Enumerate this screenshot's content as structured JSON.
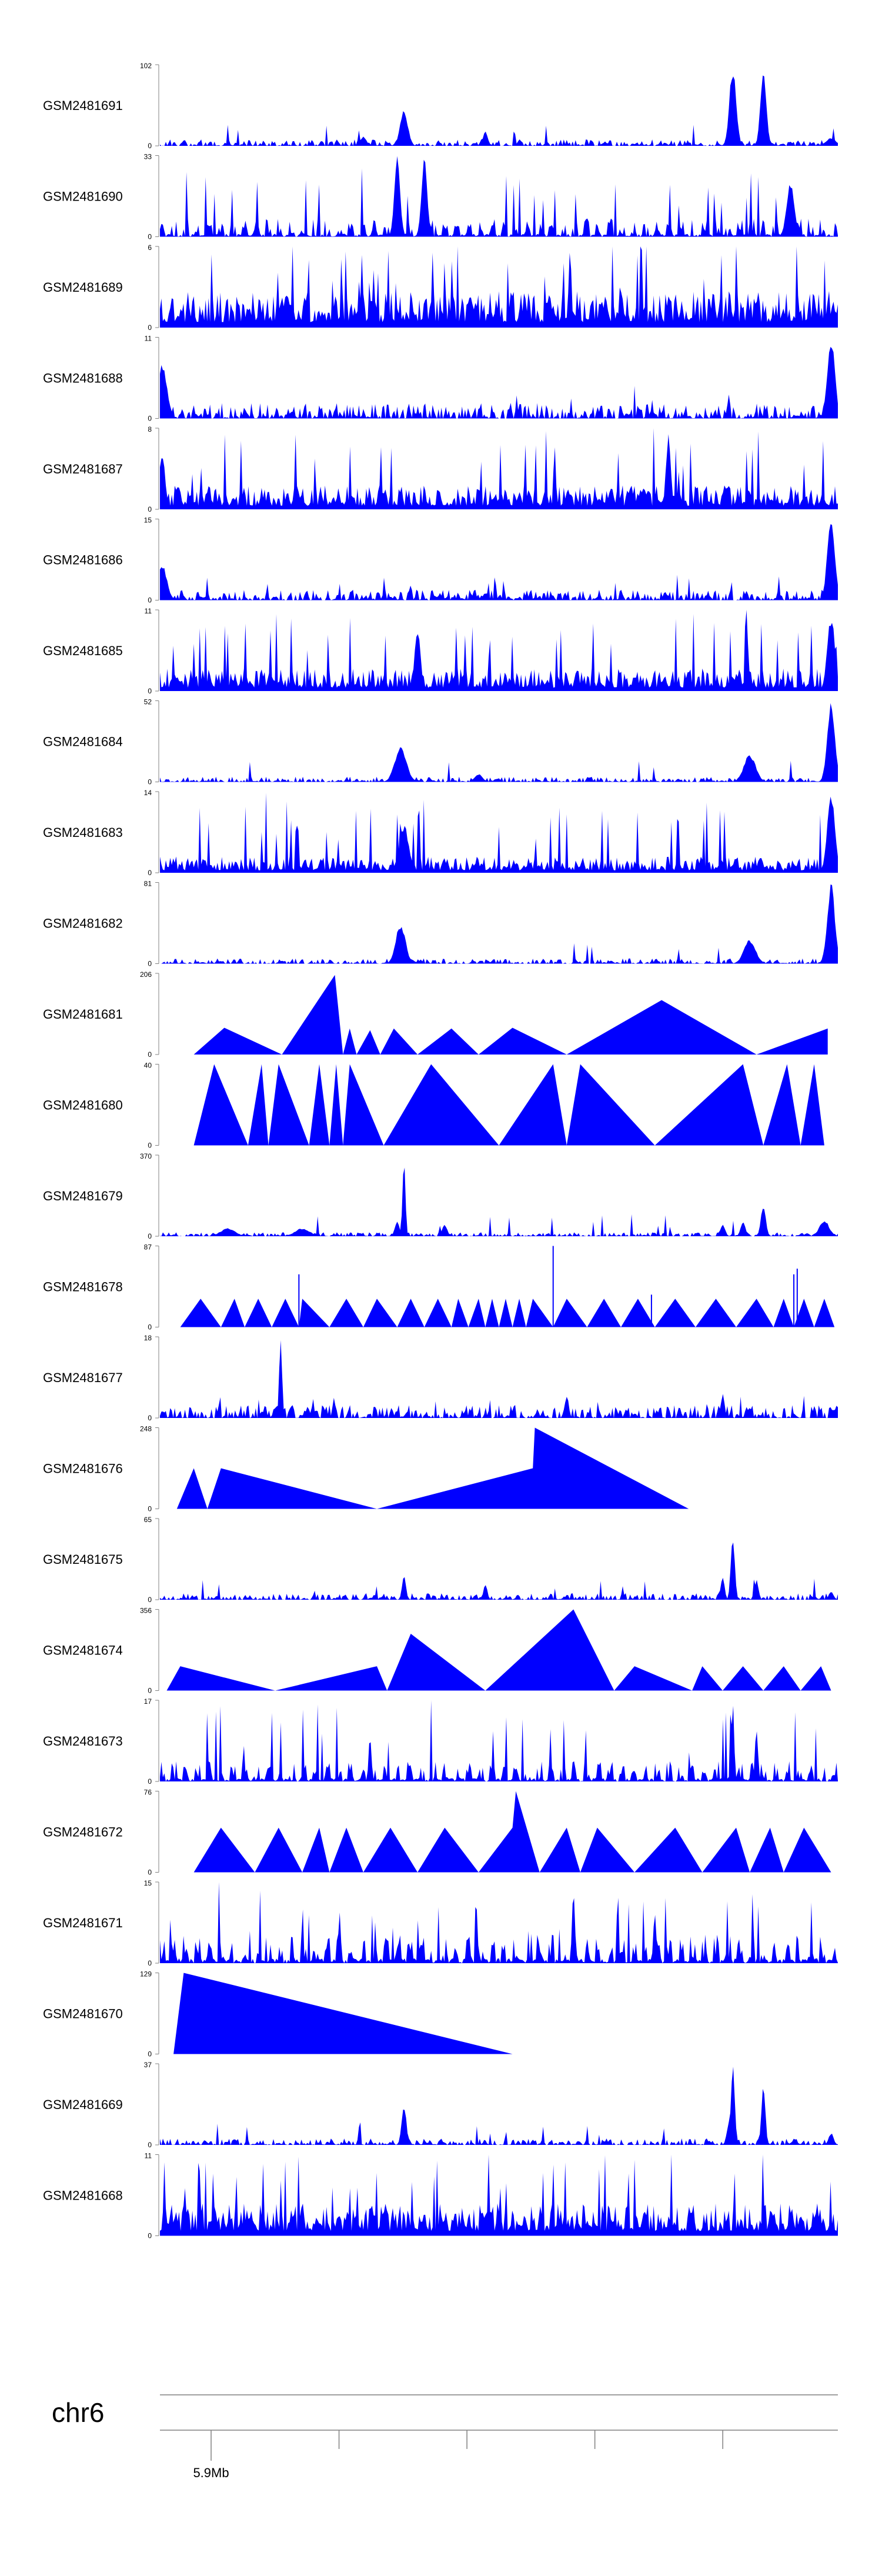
{
  "chart_data": {
    "type": "area",
    "title": "",
    "track_color": "#0000ff",
    "axis_color": "#808080",
    "chromosome": "chr6",
    "genome_axis": {
      "ticks": [
        5.9,
        6.0,
        6.1,
        6.2,
        6.3
      ],
      "labels": [
        "5.9Mb",
        "",
        "",
        "",
        ""
      ],
      "range": [
        5.86,
        6.39
      ]
    },
    "tracks": [
      {
        "name": "GSM2481691",
        "ymax": 102,
        "style": "noisy",
        "noise": 0.05,
        "peaks": [
          [
            0.3,
            0.12,
            0.006
          ],
          [
            0.36,
            0.45,
            0.008
          ],
          [
            0.48,
            0.18,
            0.005
          ],
          [
            0.845,
            1.0,
            0.007
          ],
          [
            0.89,
            0.95,
            0.006
          ],
          [
            0.99,
            0.1,
            0.01
          ]
        ]
      },
      {
        "name": "GSM2481690",
        "ymax": 33,
        "style": "peaky",
        "noise": 0.25,
        "peaks": [
          [
            0.35,
            1.0,
            0.006
          ],
          [
            0.39,
            0.98,
            0.006
          ],
          [
            0.93,
            0.7,
            0.008
          ]
        ]
      },
      {
        "name": "GSM2481689",
        "ymax": 6,
        "style": "dense",
        "noise": 0.45,
        "peaks": []
      },
      {
        "name": "GSM2481688",
        "ymax": 11,
        "style": "noisy",
        "noise": 0.12,
        "peaks": [
          [
            0.003,
            0.7,
            0.01
          ],
          [
            0.99,
            1.0,
            0.008
          ]
        ]
      },
      {
        "name": "GSM2481687",
        "ymax": 8,
        "style": "dense",
        "noise": 0.3,
        "peaks": [
          [
            0.003,
            0.75,
            0.006
          ],
          [
            0.75,
            0.95,
            0.005
          ]
        ]
      },
      {
        "name": "GSM2481686",
        "ymax": 15,
        "style": "noisy",
        "noise": 0.08,
        "peaks": [
          [
            0.003,
            0.45,
            0.01
          ],
          [
            0.99,
            1.0,
            0.008
          ]
        ]
      },
      {
        "name": "GSM2481685",
        "ymax": 11,
        "style": "dense",
        "noise": 0.28,
        "peaks": [
          [
            0.38,
            0.8,
            0.006
          ],
          [
            0.99,
            0.95,
            0.008
          ]
        ]
      },
      {
        "name": "GSM2481684",
        "ymax": 52,
        "style": "noisy",
        "noise": 0.04,
        "peaks": [
          [
            0.355,
            0.45,
            0.012
          ],
          [
            0.47,
            0.1,
            0.008
          ],
          [
            0.87,
            0.35,
            0.012
          ],
          [
            0.99,
            1.0,
            0.008
          ]
        ]
      },
      {
        "name": "GSM2481683",
        "ymax": 14,
        "style": "dense",
        "noise": 0.2,
        "peaks": [
          [
            0.36,
            0.6,
            0.01
          ],
          [
            0.99,
            1.0,
            0.008
          ]
        ]
      },
      {
        "name": "GSM2481682",
        "ymax": 81,
        "style": "noisy",
        "noise": 0.04,
        "peaks": [
          [
            0.355,
            0.5,
            0.01
          ],
          [
            0.87,
            0.3,
            0.012
          ],
          [
            0.99,
            1.0,
            0.008
          ]
        ]
      },
      {
        "name": "GSM2481681",
        "ymax": 206,
        "style": "tri",
        "pts": [
          [
            0.05,
            0
          ],
          [
            0.095,
            0.33
          ],
          [
            0.18,
            0
          ],
          [
            0.258,
            0.98
          ],
          [
            0.27,
            0
          ],
          [
            0.28,
            0.32
          ],
          [
            0.29,
            0
          ],
          [
            0.31,
            0.3
          ],
          [
            0.325,
            0
          ],
          [
            0.345,
            0.32
          ],
          [
            0.38,
            0
          ],
          [
            0.43,
            0.32
          ],
          [
            0.47,
            0
          ],
          [
            0.52,
            0.33
          ],
          [
            0.6,
            0
          ],
          [
            0.74,
            0.67
          ],
          [
            0.88,
            0
          ],
          [
            0.985,
            0.32
          ],
          [
            0.985,
            0
          ]
        ]
      },
      {
        "name": "GSM2481680",
        "ymax": 40,
        "style": "tri",
        "pts": [
          [
            0.05,
            0
          ],
          [
            0.08,
            1.0
          ],
          [
            0.13,
            0
          ],
          [
            0.15,
            1.0
          ],
          [
            0.16,
            0
          ],
          [
            0.175,
            1.0
          ],
          [
            0.22,
            0
          ],
          [
            0.235,
            1.0
          ],
          [
            0.25,
            0
          ],
          [
            0.26,
            1.0
          ],
          [
            0.27,
            0
          ],
          [
            0.28,
            1.0
          ],
          [
            0.33,
            0
          ],
          [
            0.4,
            1.0
          ],
          [
            0.5,
            0
          ],
          [
            0.58,
            1.0
          ],
          [
            0.6,
            0
          ],
          [
            0.62,
            1.0
          ],
          [
            0.73,
            0
          ],
          [
            0.86,
            1.0
          ],
          [
            0.89,
            0
          ],
          [
            0.925,
            1.0
          ],
          [
            0.945,
            0
          ],
          [
            0.965,
            1.0
          ],
          [
            0.98,
            0
          ]
        ]
      },
      {
        "name": "GSM2481679",
        "ymax": 370,
        "style": "noisy",
        "noise": 0.03,
        "peaks": [
          [
            0.36,
            1.0,
            0.003
          ],
          [
            0.35,
            0.18,
            0.005
          ],
          [
            0.1,
            0.1,
            0.015
          ],
          [
            0.21,
            0.1,
            0.015
          ],
          [
            0.42,
            0.15,
            0.005
          ],
          [
            0.83,
            0.15,
            0.005
          ],
          [
            0.86,
            0.18,
            0.005
          ],
          [
            0.89,
            0.4,
            0.005
          ],
          [
            0.98,
            0.2,
            0.01
          ]
        ]
      },
      {
        "name": "GSM2481678",
        "ymax": 87,
        "style": "tri",
        "pts": [
          [
            0.03,
            0
          ],
          [
            0.06,
            0.35
          ],
          [
            0.09,
            0
          ],
          [
            0.11,
            0.35
          ],
          [
            0.125,
            0
          ],
          [
            0.145,
            0.35
          ],
          [
            0.165,
            0
          ],
          [
            0.185,
            0.35
          ],
          [
            0.205,
            0
          ],
          [
            0.21,
            0.35
          ],
          [
            0.25,
            0
          ],
          [
            0.275,
            0.35
          ],
          [
            0.3,
            0
          ],
          [
            0.32,
            0.35
          ],
          [
            0.35,
            0
          ],
          [
            0.37,
            0.35
          ],
          [
            0.39,
            0
          ],
          [
            0.41,
            0.35
          ],
          [
            0.43,
            0
          ],
          [
            0.44,
            0.35
          ],
          [
            0.455,
            0
          ],
          [
            0.47,
            0.35
          ],
          [
            0.48,
            0
          ],
          [
            0.49,
            0.35
          ],
          [
            0.5,
            0
          ],
          [
            0.51,
            0.35
          ],
          [
            0.52,
            0
          ],
          [
            0.53,
            0.35
          ],
          [
            0.54,
            0
          ],
          [
            0.55,
            0.35
          ],
          [
            0.58,
            0
          ],
          [
            0.6,
            0.35
          ],
          [
            0.63,
            0
          ],
          [
            0.655,
            0.35
          ],
          [
            0.68,
            0
          ],
          [
            0.705,
            0.35
          ],
          [
            0.73,
            0
          ],
          [
            0.76,
            0.35
          ],
          [
            0.79,
            0
          ],
          [
            0.82,
            0.35
          ],
          [
            0.85,
            0
          ],
          [
            0.88,
            0.35
          ],
          [
            0.905,
            0
          ],
          [
            0.92,
            0.35
          ],
          [
            0.935,
            0
          ],
          [
            0.95,
            0.35
          ],
          [
            0.965,
            0
          ],
          [
            0.98,
            0.35
          ],
          [
            0.995,
            0
          ]
        ],
        "spikes": [
          [
            0.205,
            0.65
          ],
          [
            0.58,
            1.0
          ],
          [
            0.725,
            0.4
          ],
          [
            0.935,
            0.65
          ],
          [
            0.94,
            0.72
          ]
        ]
      },
      {
        "name": "GSM2481677",
        "ymax": 18,
        "style": "noisy",
        "noise": 0.1,
        "peaks": [
          [
            0.178,
            1.0,
            0.003
          ],
          [
            0.6,
            0.3,
            0.004
          ],
          [
            0.83,
            0.3,
            0.004
          ]
        ]
      },
      {
        "name": "GSM2481676",
        "ymax": 248,
        "style": "tri",
        "pts": [
          [
            0.025,
            0
          ],
          [
            0.05,
            0.5
          ],
          [
            0.07,
            0
          ],
          [
            0.09,
            0.5
          ],
          [
            0.32,
            0
          ],
          [
            0.55,
            0.5
          ],
          [
            0.553,
            1.0
          ],
          [
            0.78,
            0
          ]
        ]
      },
      {
        "name": "GSM2481675",
        "ymax": 65,
        "style": "noisy",
        "noise": 0.05,
        "peaks": [
          [
            0.36,
            0.3,
            0.004
          ],
          [
            0.48,
            0.2,
            0.004
          ],
          [
            0.845,
            0.85,
            0.004
          ],
          [
            0.83,
            0.3,
            0.004
          ],
          [
            0.88,
            0.25,
            0.004
          ],
          [
            0.99,
            0.1,
            0.005
          ]
        ]
      },
      {
        "name": "GSM2481674",
        "ymax": 356,
        "style": "tri",
        "pts": [
          [
            0.01,
            0
          ],
          [
            0.03,
            0.3
          ],
          [
            0.17,
            0
          ],
          [
            0.32,
            0.3
          ],
          [
            0.335,
            0
          ],
          [
            0.37,
            0.7
          ],
          [
            0.48,
            0
          ],
          [
            0.61,
            1.0
          ],
          [
            0.67,
            0
          ],
          [
            0.7,
            0.3
          ],
          [
            0.785,
            0
          ],
          [
            0.8,
            0.3
          ],
          [
            0.83,
            0
          ],
          [
            0.86,
            0.3
          ],
          [
            0.89,
            0
          ],
          [
            0.92,
            0.3
          ],
          [
            0.945,
            0
          ],
          [
            0.975,
            0.3
          ],
          [
            0.99,
            0
          ]
        ]
      },
      {
        "name": "GSM2481673",
        "ymax": 17,
        "style": "peaky",
        "noise": 0.28,
        "peaks": [
          [
            0.845,
            1.0,
            0.003
          ],
          [
            0.88,
            0.7,
            0.003
          ],
          [
            0.31,
            0.6,
            0.003
          ]
        ]
      },
      {
        "name": "GSM2481672",
        "ymax": 76,
        "style": "tri",
        "pts": [
          [
            0.05,
            0
          ],
          [
            0.09,
            0.55
          ],
          [
            0.14,
            0
          ],
          [
            0.175,
            0.55
          ],
          [
            0.21,
            0
          ],
          [
            0.235,
            0.55
          ],
          [
            0.25,
            0
          ],
          [
            0.275,
            0.55
          ],
          [
            0.3,
            0
          ],
          [
            0.34,
            0.55
          ],
          [
            0.38,
            0
          ],
          [
            0.42,
            0.55
          ],
          [
            0.47,
            0
          ],
          [
            0.52,
            0.55
          ],
          [
            0.525,
            1.0
          ],
          [
            0.56,
            0
          ],
          [
            0.6,
            0.55
          ],
          [
            0.62,
            0
          ],
          [
            0.645,
            0.55
          ],
          [
            0.7,
            0
          ],
          [
            0.76,
            0.55
          ],
          [
            0.8,
            0
          ],
          [
            0.85,
            0.55
          ],
          [
            0.87,
            0
          ],
          [
            0.9,
            0.55
          ],
          [
            0.92,
            0
          ],
          [
            0.95,
            0.55
          ],
          [
            0.99,
            0
          ]
        ]
      },
      {
        "name": "GSM2481671",
        "ymax": 15,
        "style": "peaky",
        "noise": 0.4,
        "peaks": [
          [
            0.61,
            1.0,
            0.003
          ],
          [
            0.73,
            0.7,
            0.003
          ]
        ]
      },
      {
        "name": "GSM2481670",
        "ymax": 129,
        "style": "tri",
        "pts": [
          [
            0.02,
            0
          ],
          [
            0.035,
            1.0
          ],
          [
            0.52,
            0
          ]
        ]
      },
      {
        "name": "GSM2481669",
        "ymax": 37,
        "style": "noisy",
        "noise": 0.05,
        "peaks": [
          [
            0.36,
            0.5,
            0.005
          ],
          [
            0.84,
            0.3,
            0.005
          ],
          [
            0.845,
            1.0,
            0.004
          ],
          [
            0.89,
            0.8,
            0.004
          ],
          [
            0.99,
            0.15,
            0.005
          ]
        ]
      },
      {
        "name": "GSM2481668",
        "ymax": 11,
        "style": "dense",
        "noise": 0.4,
        "peaks": []
      }
    ]
  }
}
